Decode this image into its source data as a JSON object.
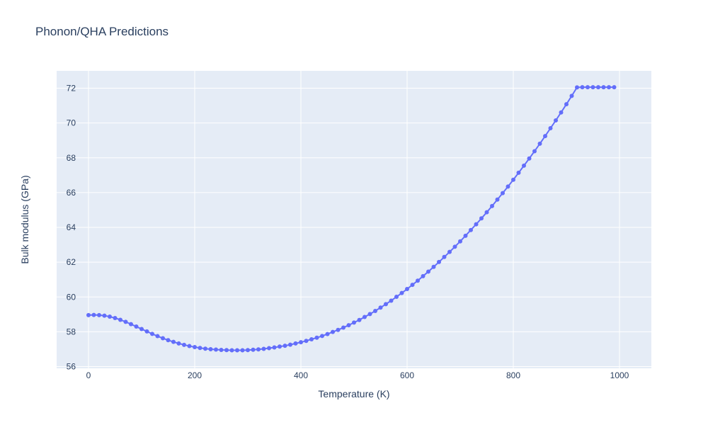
{
  "chart_data": {
    "type": "line",
    "title": "Phonon/QHA Predictions",
    "xlabel": "Temperature (K)",
    "ylabel": "Bulk modulus (GPa)",
    "xlim": [
      -60,
      1060
    ],
    "ylim": [
      55.9,
      73.0
    ],
    "x_ticks": [
      0,
      200,
      400,
      600,
      800,
      1000
    ],
    "y_ticks": [
      56,
      58,
      60,
      62,
      64,
      66,
      68,
      70,
      72
    ],
    "grid": true,
    "legend": "none",
    "colors": {
      "plot_bg": "#e5ecf6",
      "grid": "#ffffff",
      "series": "#636efa",
      "text": "#2a3f5f"
    },
    "series": [
      {
        "mode": "lines+markers",
        "x": [
          0,
          10,
          20,
          30,
          40,
          50,
          60,
          70,
          80,
          90,
          100,
          110,
          120,
          130,
          140,
          150,
          160,
          170,
          180,
          190,
          200,
          210,
          220,
          230,
          240,
          250,
          260,
          270,
          280,
          290,
          300,
          310,
          320,
          330,
          340,
          350,
          360,
          370,
          380,
          390,
          400,
          410,
          420,
          430,
          440,
          450,
          460,
          470,
          480,
          490,
          500,
          510,
          520,
          530,
          540,
          550,
          560,
          570,
          580,
          590,
          600,
          610,
          620,
          630,
          640,
          650,
          660,
          670,
          680,
          690,
          700,
          710,
          720,
          730,
          740,
          750,
          760,
          770,
          780,
          790,
          800,
          810,
          820,
          830,
          840,
          850,
          860,
          870,
          880,
          890,
          900,
          910,
          920,
          930,
          940,
          950,
          960,
          970,
          980,
          990
        ],
        "y": [
          58.96,
          58.97,
          58.96,
          58.93,
          58.87,
          58.79,
          58.69,
          58.57,
          58.44,
          58.3,
          58.16,
          58.02,
          57.88,
          57.75,
          57.63,
          57.52,
          57.42,
          57.33,
          57.25,
          57.18,
          57.12,
          57.07,
          57.03,
          57.0,
          56.98,
          56.96,
          56.95,
          56.94,
          56.94,
          56.94,
          56.95,
          56.97,
          56.99,
          57.02,
          57.06,
          57.1,
          57.15,
          57.2,
          57.26,
          57.33,
          57.4,
          57.48,
          57.57,
          57.66,
          57.76,
          57.87,
          57.99,
          58.11,
          58.24,
          58.38,
          58.53,
          58.68,
          58.85,
          59.02,
          59.2,
          59.39,
          59.59,
          59.79,
          60.01,
          60.23,
          60.46,
          60.7,
          60.94,
          61.2,
          61.46,
          61.73,
          62.01,
          62.3,
          62.59,
          62.89,
          63.2,
          63.52,
          63.85,
          64.18,
          64.52,
          64.87,
          65.23,
          65.6,
          65.97,
          66.35,
          66.74,
          67.14,
          67.55,
          67.96,
          68.38,
          68.81,
          69.25,
          69.7,
          70.15,
          70.61,
          71.08,
          71.56,
          72.05,
          72.06,
          72.06,
          72.06,
          72.06,
          72.06,
          72.06,
          72.06
        ]
      }
    ]
  }
}
